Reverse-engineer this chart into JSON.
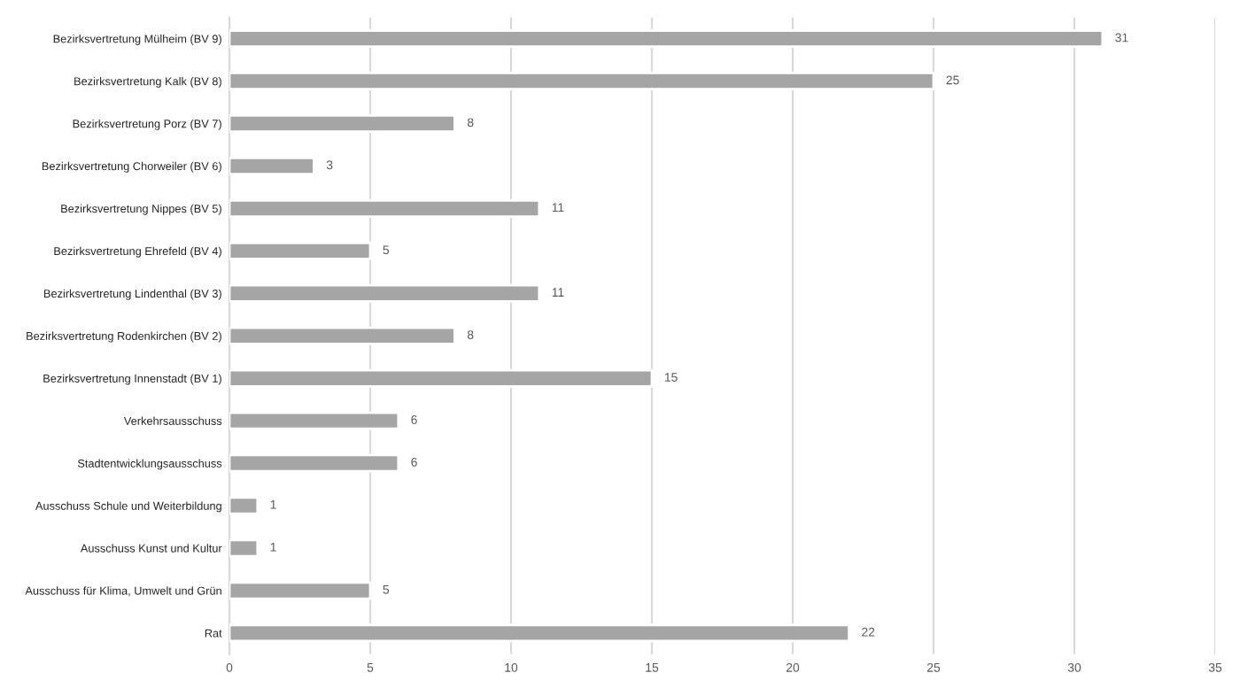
{
  "chart_data": {
    "type": "bar",
    "orientation": "horizontal",
    "categories": [
      "Bezirksvertretung Mülheim (BV 9)",
      "Bezirksvertretung Kalk (BV 8)",
      "Bezirksvertretung Porz (BV 7)",
      "Bezirksvertretung Chorweiler (BV 6)",
      "Bezirksvertretung Nippes (BV 5)",
      "Bezirksvertretung Ehrefeld (BV 4)",
      "Bezirksvertretung Lindenthal (BV 3)",
      "Bezirksvertretung Rodenkirchen (BV 2)",
      "Bezirksvertretung Innenstadt (BV 1)",
      "Verkehrsausschuss",
      "Stadtentwicklungsausschuss",
      "Ausschuss Schule und Weiterbildung",
      "Ausschuss Kunst und Kultur",
      "Ausschuss für Klima, Umwelt und Grün",
      "Rat"
    ],
    "values": [
      31,
      25,
      8,
      3,
      11,
      5,
      11,
      8,
      15,
      6,
      6,
      1,
      1,
      5,
      22
    ],
    "color": "#a5a5a5",
    "data_labels": true,
    "grid": "x",
    "xlim": [
      0,
      35
    ],
    "xticks": [
      0,
      5,
      10,
      15,
      20,
      25,
      30,
      35
    ]
  }
}
